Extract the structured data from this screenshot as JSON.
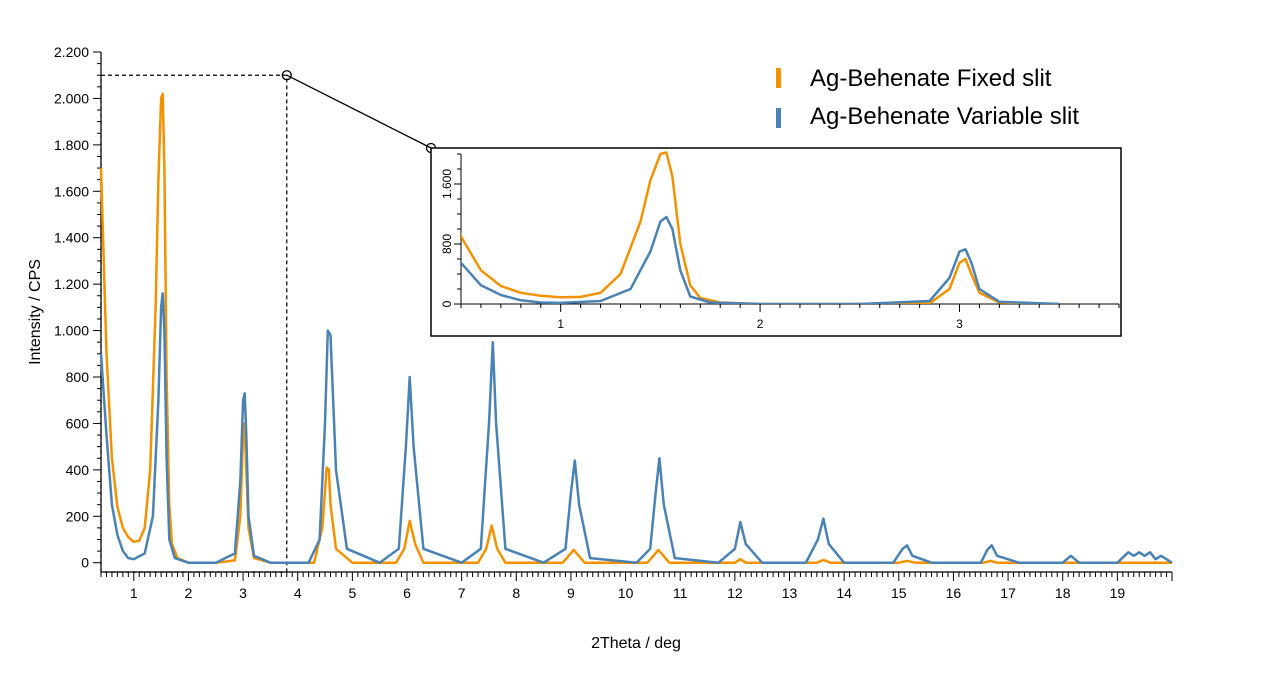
{
  "chart_data": {
    "type": "line",
    "title": "",
    "xlabel": "2Theta / deg",
    "ylabel": "Intensity / CPS",
    "xlim": [
      0.4,
      20.0
    ],
    "ylim": [
      -40,
      2200
    ],
    "x_ticks": [
      1,
      2,
      3,
      4,
      5,
      6,
      7,
      8,
      9,
      10,
      11,
      12,
      13,
      14,
      15,
      16,
      17,
      18,
      19
    ],
    "y_ticks": [
      0,
      200,
      400,
      600,
      800,
      1000,
      1200,
      1400,
      1600,
      1800,
      2000,
      2200
    ],
    "y_tick_labels": [
      "0",
      "200",
      "400",
      "600",
      "800",
      "1.000",
      "1.200",
      "1.400",
      "1.600",
      "1.800",
      "2.000",
      "2.200"
    ],
    "legend_position": "top-right",
    "grid": false,
    "series": [
      {
        "name": "Ag-Behenate Fixed slit",
        "color": "#f39200",
        "x": [
          0.4,
          0.5,
          0.6,
          0.7,
          0.8,
          0.9,
          1.0,
          1.1,
          1.2,
          1.3,
          1.4,
          1.45,
          1.5,
          1.53,
          1.56,
          1.6,
          1.65,
          1.7,
          1.8,
          2.0,
          2.5,
          2.85,
          2.95,
          3.0,
          3.03,
          3.06,
          3.1,
          3.2,
          3.5,
          4.3,
          4.45,
          4.53,
          4.57,
          4.6,
          4.7,
          5.0,
          5.8,
          5.95,
          6.05,
          6.15,
          6.3,
          7.3,
          7.45,
          7.55,
          7.65,
          7.8,
          8.85,
          9.05,
          9.25,
          10.4,
          10.6,
          10.8,
          12.0,
          12.1,
          12.2,
          13.5,
          13.62,
          13.75,
          15.0,
          15.15,
          15.3,
          16.55,
          16.68,
          16.8,
          20.0
        ],
        "values": [
          1700,
          900,
          450,
          240,
          150,
          110,
          90,
          95,
          150,
          400,
          1100,
          1650,
          2000,
          2020,
          1700,
          800,
          250,
          80,
          20,
          0,
          0,
          10,
          200,
          550,
          600,
          400,
          150,
          20,
          0,
          0,
          150,
          410,
          400,
          250,
          60,
          0,
          0,
          60,
          180,
          80,
          0,
          0,
          60,
          160,
          60,
          0,
          0,
          55,
          0,
          0,
          55,
          0,
          0,
          15,
          0,
          0,
          12,
          0,
          0,
          8,
          0,
          0,
          8,
          0,
          0
        ]
      },
      {
        "name": "Ag-Behenate Variable slit",
        "color": "#4a82b4",
        "x": [
          0.4,
          0.5,
          0.6,
          0.7,
          0.8,
          0.9,
          1.0,
          1.2,
          1.35,
          1.45,
          1.5,
          1.53,
          1.56,
          1.6,
          1.65,
          1.75,
          2.0,
          2.5,
          2.85,
          2.95,
          3.0,
          3.03,
          3.06,
          3.1,
          3.2,
          3.5,
          4.2,
          4.4,
          4.5,
          4.55,
          4.6,
          4.7,
          4.9,
          5.5,
          5.85,
          5.98,
          6.05,
          6.12,
          6.3,
          7.0,
          7.35,
          7.5,
          7.57,
          7.63,
          7.8,
          8.5,
          8.9,
          9.0,
          9.07,
          9.15,
          9.35,
          10.2,
          10.45,
          10.55,
          10.62,
          10.7,
          10.9,
          11.7,
          12.0,
          12.1,
          12.2,
          12.5,
          13.3,
          13.52,
          13.62,
          13.72,
          14.0,
          14.9,
          15.07,
          15.15,
          15.25,
          15.6,
          16.5,
          16.62,
          16.7,
          16.8,
          17.2,
          18.0,
          18.15,
          18.3,
          19.0,
          19.2,
          19.3,
          19.4,
          19.5,
          19.6,
          19.7,
          19.8,
          20.0
        ],
        "values": [
          900,
          550,
          250,
          120,
          50,
          20,
          15,
          40,
          200,
          700,
          1100,
          1160,
          1000,
          450,
          100,
          20,
          0,
          0,
          40,
          350,
          700,
          730,
          550,
          200,
          30,
          0,
          0,
          100,
          600,
          1000,
          980,
          400,
          60,
          0,
          60,
          500,
          800,
          500,
          60,
          0,
          60,
          600,
          950,
          600,
          60,
          0,
          60,
          300,
          440,
          250,
          20,
          0,
          60,
          300,
          450,
          250,
          20,
          0,
          60,
          175,
          80,
          0,
          0,
          100,
          190,
          80,
          0,
          0,
          60,
          75,
          30,
          0,
          0,
          55,
          75,
          30,
          0,
          0,
          30,
          0,
          0,
          45,
          30,
          45,
          30,
          45,
          15,
          30,
          0
        ]
      }
    ],
    "inset": {
      "xlim": [
        0.5,
        3.8
      ],
      "ylim": [
        0,
        2000
      ],
      "x_ticks": [
        1,
        2,
        3
      ],
      "y_ticks": [
        0,
        800,
        1600
      ],
      "y_tick_labels": [
        "0",
        "800",
        "1.600"
      ],
      "zoom_region": {
        "x": [
          0.4,
          3.8
        ],
        "y": [
          -40,
          2100
        ]
      }
    }
  }
}
